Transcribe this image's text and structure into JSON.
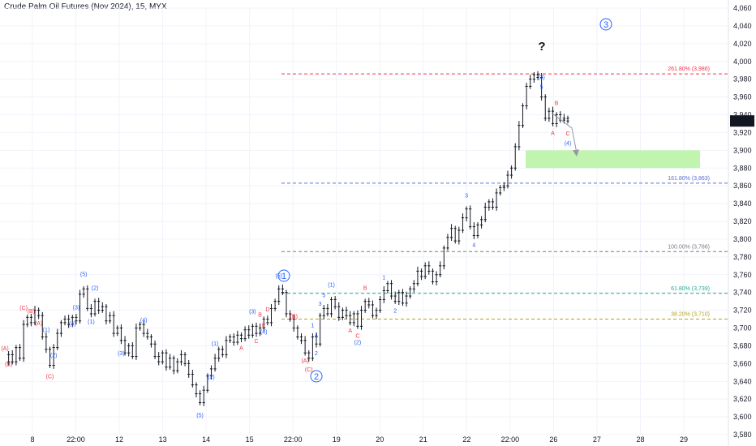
{
  "chart_data": {
    "type": "candlestick",
    "title": "Crude Palm Oil Futures (Nov 2024), 15, MYX",
    "x_tick_labels": [
      "8",
      "22:00",
      "12",
      "13",
      "14",
      "15",
      "22:00",
      "19",
      "20",
      "21",
      "22",
      "22:00",
      "26",
      "27",
      "28",
      "29"
    ],
    "y_tick_labels": [
      3580,
      3600,
      3620,
      3640,
      3660,
      3680,
      3700,
      3720,
      3740,
      3760,
      3780,
      3800,
      3820,
      3840,
      3860,
      3880,
      3900,
      3920,
      3940,
      3960,
      3980,
      4000,
      4020,
      4040,
      4060
    ],
    "ylim": [
      3580,
      4060
    ],
    "last_price": "3,933",
    "price_path": [
      3662,
      3670,
      3662,
      3678,
      3666,
      3704,
      3712,
      3706,
      3720,
      3714,
      3690,
      3676,
      3658,
      3678,
      3694,
      3706,
      3710,
      3704,
      3712,
      3708,
      3738,
      3744,
      3722,
      3716,
      3730,
      3720,
      3724,
      3708,
      3714,
      3694,
      3700,
      3686,
      3672,
      3680,
      3668,
      3700,
      3704,
      3694,
      3690,
      3682,
      3668,
      3662,
      3672,
      3656,
      3666,
      3652,
      3662,
      3670,
      3660,
      3648,
      3636,
      3626,
      3616,
      3630,
      3646,
      3654,
      3666,
      3676,
      3670,
      3686,
      3690,
      3684,
      3692,
      3688,
      3698,
      3692,
      3702,
      3694,
      3700,
      3710,
      3706,
      3722,
      3730,
      3744,
      3740,
      3716,
      3710,
      3700,
      3690,
      3686,
      3672,
      3666,
      3690,
      3682,
      3714,
      3722,
      3716,
      3732,
      3724,
      3712,
      3720,
      3714,
      3706,
      3716,
      3702,
      3720,
      3730,
      3726,
      3714,
      3720,
      3732,
      3742,
      3750,
      3736,
      3730,
      3740,
      3728,
      3736,
      3744,
      3750,
      3764,
      3758,
      3770,
      3764,
      3752,
      3760,
      3770,
      3790,
      3802,
      3812,
      3798,
      3810,
      3824,
      3834,
      3814,
      3804,
      3816,
      3822,
      3836,
      3842,
      3836,
      3852,
      3858,
      3860,
      3872,
      3880,
      3904,
      3928,
      3950,
      3972,
      3980,
      3985,
      3982,
      3960,
      3936,
      3944,
      3930,
      3940,
      3934,
      3936,
      3933
    ],
    "fib_levels": [
      {
        "label": "261.80% (3,986)",
        "value": 3986,
        "color": "#f23645"
      },
      {
        "label": "161.80% (3,863)",
        "value": 3863,
        "color": "#5b6fd6"
      },
      {
        "label": "100.00% (3,786)",
        "value": 3786,
        "color": "#787b86"
      },
      {
        "label": "61.80% (3,739)",
        "value": 3739,
        "color": "#22ab94"
      },
      {
        "label": "38.20% (3,710)",
        "value": 3710,
        "color": "#b5a21b"
      }
    ],
    "target_zone": {
      "from": 3880,
      "to": 3900,
      "color": "#b6f3a1"
    },
    "annotations": {
      "question_mark": "?",
      "major_waves": [
        "1",
        "2",
        "3"
      ],
      "wave_labels": [
        {
          "text": "(A)",
          "color": "#f23645",
          "i": 0,
          "dy": -14
        },
        {
          "text": "(B)",
          "color": "#f23645",
          "i": 1,
          "dy": 14
        },
        {
          "text": "(C)",
          "color": "#f23645",
          "i": 5,
          "dy": -18
        },
        {
          "text": "(B)",
          "color": "#f23645",
          "i": 7,
          "dy": -12
        },
        {
          "text": "(A)",
          "color": "#f23645",
          "i": 9,
          "dy": 12
        },
        {
          "text": "(C)",
          "color": "#f23645",
          "i": 12,
          "dy": 16
        },
        {
          "text": "(1)",
          "color": "#2962ff",
          "i": 11,
          "dy": -22
        },
        {
          "text": "(2)",
          "color": "#2962ff",
          "i": 13,
          "dy": 12
        },
        {
          "text": "(3)",
          "color": "#2962ff",
          "i": 19,
          "dy": -14
        },
        {
          "text": "(4)",
          "color": "#2962ff",
          "i": 18,
          "dy": 10
        },
        {
          "text": "(5)",
          "color": "#2962ff",
          "i": 21,
          "dy": -16
        },
        {
          "text": "(1)",
          "color": "#2962ff",
          "i": 23,
          "dy": 12
        },
        {
          "text": "(2)",
          "color": "#2962ff",
          "i": 24,
          "dy": -14
        },
        {
          "text": "(3)",
          "color": "#2962ff",
          "i": 31,
          "dy": 18
        },
        {
          "text": "(4)",
          "color": "#2962ff",
          "i": 37,
          "dy": -14
        },
        {
          "text": "(5)",
          "color": "#2962ff",
          "i": 52,
          "dy": 18
        },
        {
          "text": "(1)",
          "color": "#2962ff",
          "i": 56,
          "dy": -16
        },
        {
          "text": "(2)",
          "color": "#2962ff",
          "i": 55,
          "dy": 12
        },
        {
          "text": "(3)",
          "color": "#2962ff",
          "i": 66,
          "dy": -16
        },
        {
          "text": "B",
          "color": "#f23645",
          "i": 68,
          "dy": -14
        },
        {
          "text": "A",
          "color": "#f23645",
          "i": 63,
          "dy": 14
        },
        {
          "text": "C",
          "color": "#f23645",
          "i": 67,
          "dy": 12
        },
        {
          "text": "D",
          "color": "#f23645",
          "i": 70,
          "dy": -14
        },
        {
          "text": "E",
          "color": "#f23645",
          "i": 69,
          "dy": 10
        },
        {
          "text": "(4)",
          "color": "#2962ff",
          "i": 69,
          "dy": 18
        },
        {
          "text": "(5)",
          "color": "#2962ff",
          "i": 73,
          "dy": -14
        },
        {
          "text": "(B)",
          "color": "#f23645",
          "i": 77,
          "dy": -12
        },
        {
          "text": "(A)",
          "color": "#f23645",
          "i": 80,
          "dy": 12
        },
        {
          "text": "(C)",
          "color": "#f23645",
          "i": 81,
          "dy": 16
        },
        {
          "text": "1",
          "color": "#2962ff",
          "i": 82,
          "dy": -12
        },
        {
          "text": "2",
          "color": "#2962ff",
          "i": 83,
          "dy": 14
        },
        {
          "text": "3",
          "color": "#2962ff",
          "i": 84,
          "dy": -12
        },
        {
          "text": "4",
          "color": "#2962ff",
          "i": 83,
          "dy": -8
        },
        {
          "text": "(1)",
          "color": "#2962ff",
          "i": 87,
          "dy": -16
        },
        {
          "text": "5",
          "color": "#2962ff",
          "i": 85,
          "dy": -14
        },
        {
          "text": "A",
          "color": "#f23645",
          "i": 92,
          "dy": 12
        },
        {
          "text": "B",
          "color": "#f23645",
          "i": 96,
          "dy": -14
        },
        {
          "text": "C",
          "color": "#f23645",
          "i": 94,
          "dy": 14
        },
        {
          "text": "(2)",
          "color": "#2962ff",
          "i": 94,
          "dy": 22
        },
        {
          "text": "1",
          "color": "#2962ff",
          "i": 101,
          "dy": -14
        },
        {
          "text": "2",
          "color": "#2962ff",
          "i": 104,
          "dy": 14
        },
        {
          "text": "3",
          "color": "#2962ff",
          "i": 123,
          "dy": -14
        },
        {
          "text": "4",
          "color": "#2962ff",
          "i": 125,
          "dy": 14
        },
        {
          "text": "5",
          "color": "#2962ff",
          "i": 143,
          "dy": -10
        },
        {
          "text": "(3)",
          "color": "#2962ff",
          "i": 143,
          "dy": -22
        },
        {
          "text": "A",
          "color": "#f23645",
          "i": 146,
          "dy": 14
        },
        {
          "text": "B",
          "color": "#f23645",
          "i": 147,
          "dy": -12
        },
        {
          "text": "C",
          "color": "#f23645",
          "i": 152,
          "dy": 18
        },
        {
          "text": "(4)",
          "color": "#2962ff",
          "i": 152,
          "dy": 30
        },
        {
          "text": "(5)",
          "color": "#2962ff",
          "i": 153,
          "dy": -160
        }
      ]
    }
  }
}
